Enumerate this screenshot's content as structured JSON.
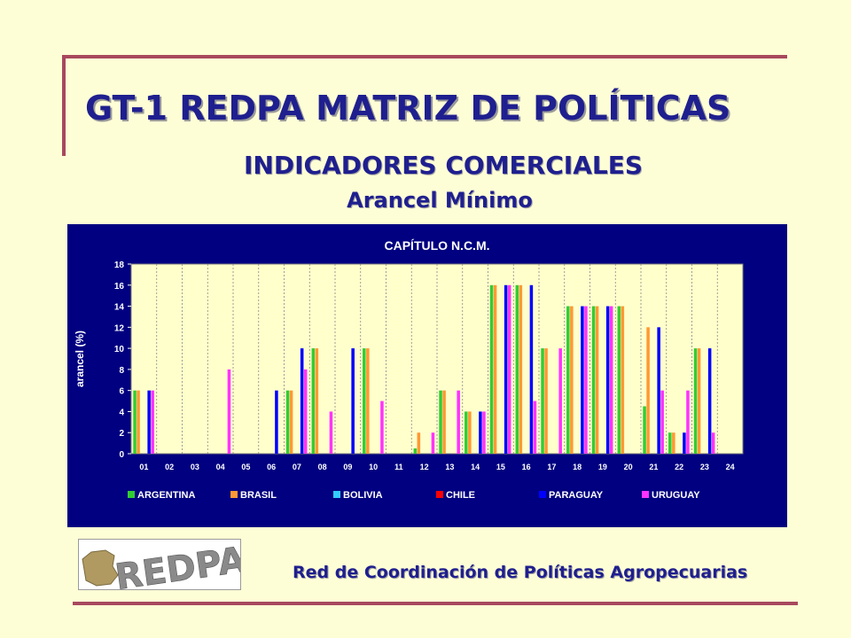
{
  "header": {
    "title": "GT-1 REDPA MATRIZ DE POLÍTICAS",
    "subtitle": "INDICADORES COMERCIALES",
    "subtitle2": "Arancel Mínimo"
  },
  "footer": {
    "logo_text": "REDPA",
    "org_name": "Red de Coordinación de Políticas Agropecuarias"
  },
  "colors": {
    "page_background": "#fefed6",
    "accent_rule": "#a8485e",
    "heading_text": "#1f1f8f",
    "chart_panel": "#000080",
    "plot_background": "#ffffcc"
  },
  "chart_data": {
    "type": "bar",
    "title": "CAPÍTULO N.C.M.",
    "xlabel": "",
    "ylabel": "arancel (%)",
    "ylim": [
      0,
      18
    ],
    "yticks": [
      0,
      2,
      4,
      6,
      8,
      10,
      12,
      14,
      16,
      18
    ],
    "grid": "vertical dashed",
    "legend_position": "bottom",
    "categories": [
      "01",
      "02",
      "03",
      "04",
      "05",
      "06",
      "07",
      "08",
      "09",
      "10",
      "11",
      "12",
      "13",
      "14",
      "15",
      "16",
      "17",
      "18",
      "19",
      "20",
      "21",
      "22",
      "23",
      "24"
    ],
    "series": [
      {
        "name": "ARGENTINA",
        "color": "#33cc33",
        "values": [
          6,
          0,
          0,
          0,
          0,
          0,
          6,
          10,
          0,
          10,
          0,
          0.5,
          6,
          4,
          16,
          16,
          10,
          14,
          14,
          14,
          4.5,
          2,
          10,
          0
        ]
      },
      {
        "name": "BRASIL",
        "color": "#ff9933",
        "values": [
          6,
          0,
          0,
          0,
          0,
          0,
          6,
          10,
          0,
          10,
          0,
          2,
          6,
          4,
          16,
          16,
          10,
          14,
          14,
          14,
          12,
          2,
          10,
          0
        ]
      },
      {
        "name": "BOLIVIA",
        "color": "#33ccff",
        "values": [
          0,
          0,
          0,
          0,
          0,
          0,
          0,
          0,
          0,
          0,
          0,
          0,
          0,
          0,
          0,
          0,
          0,
          0,
          0,
          0,
          0,
          0,
          0,
          0
        ]
      },
      {
        "name": "CHILE",
        "color": "#ff0000",
        "values": [
          0,
          0,
          0,
          0,
          0,
          0,
          0,
          0,
          0,
          0,
          0,
          0,
          0,
          0,
          0,
          0,
          0,
          0,
          0,
          0,
          0,
          0,
          0,
          0
        ]
      },
      {
        "name": "PARAGUAY",
        "color": "#0000ff",
        "values": [
          6,
          0,
          0,
          0,
          0,
          6,
          10,
          0,
          10,
          0,
          0,
          0,
          0,
          4,
          16,
          16,
          0,
          14,
          14,
          0,
          12,
          2,
          10,
          0
        ]
      },
      {
        "name": "URUGUAY",
        "color": "#ff33ff",
        "values": [
          6,
          0,
          0,
          8,
          0,
          0,
          8,
          4,
          0,
          5,
          0,
          2,
          6,
          4,
          16,
          5,
          10,
          14,
          14,
          0,
          6,
          6,
          2,
          0
        ]
      }
    ]
  }
}
